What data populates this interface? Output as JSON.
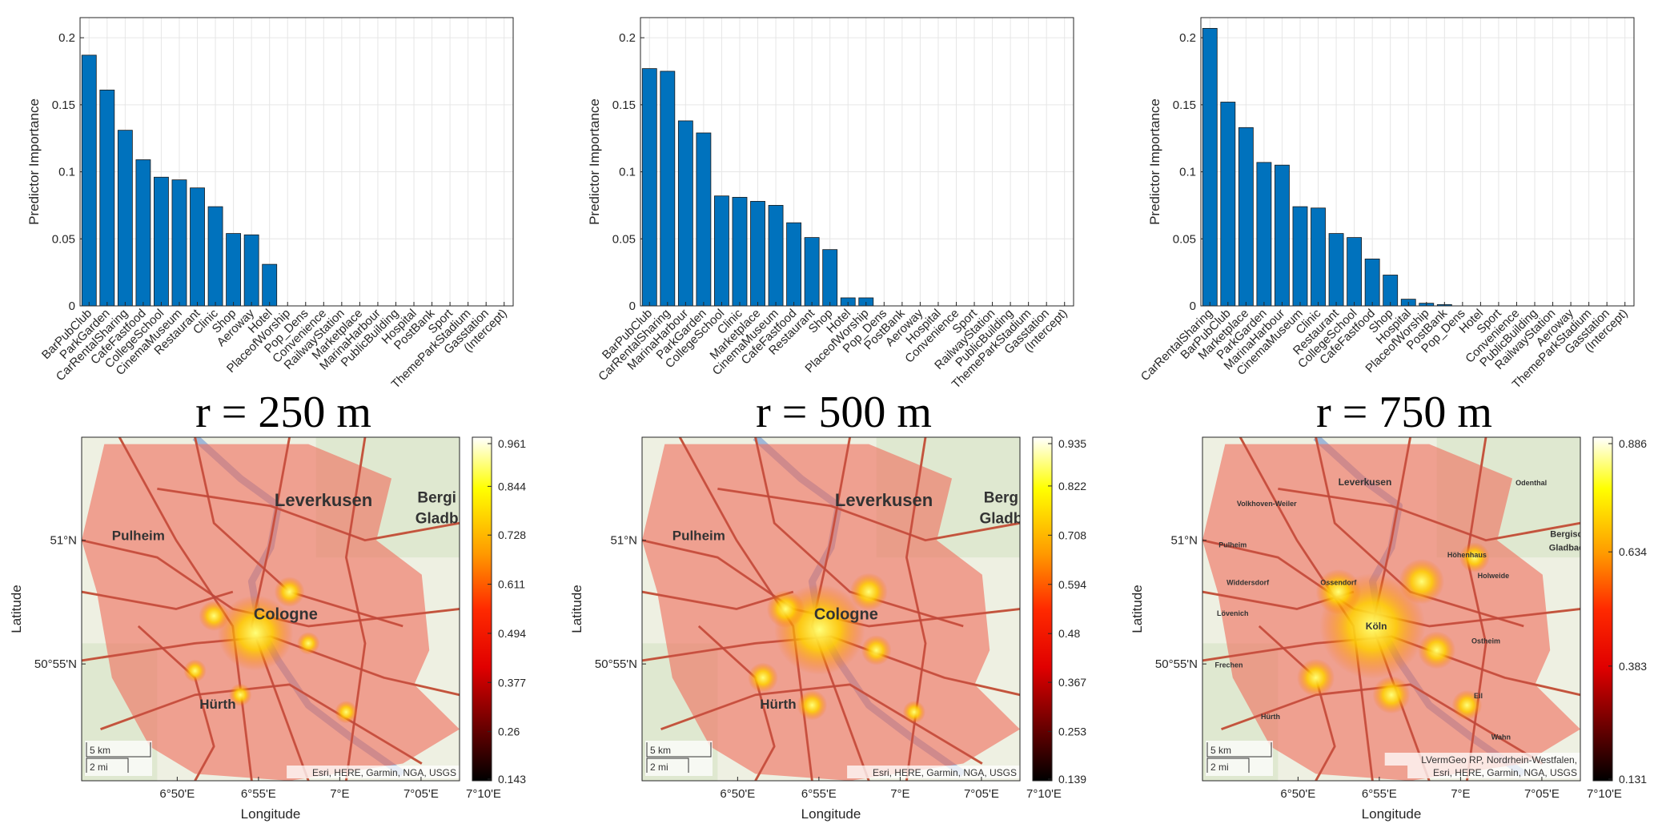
{
  "chart_data": [
    {
      "type": "bar",
      "panel": "r = 250 m",
      "title": "",
      "ylabel": "Predictor Importance",
      "xlabel": "",
      "ylim": [
        0,
        0.215
      ],
      "yticks": [
        "0",
        "0.05",
        "0.1",
        "0.15",
        "0.2"
      ],
      "grid": true,
      "categories": [
        "BarPubClub",
        "ParkGarden",
        "CarRentalSharing",
        "CafeFastfood",
        "CollegeSchool",
        "CinemaMuseum",
        "Restaurant",
        "Clinic",
        "Shop",
        "Aeroway",
        "Hotel",
        "PlaceofWorship",
        "Pop_Dens",
        "Convenience",
        "RailwayStation",
        "Marketplace",
        "MarinaHarbour",
        "PublicBuilding",
        "Hospital",
        "PostBank",
        "Sport",
        "ThemeParkStadium",
        "Gasstation",
        "(Intercept)"
      ],
      "values": [
        0.187,
        0.161,
        0.131,
        0.109,
        0.096,
        0.094,
        0.088,
        0.074,
        0.054,
        0.053,
        0.031,
        0,
        0,
        0,
        0,
        0,
        0,
        0,
        0,
        0,
        0,
        0,
        0,
        0
      ]
    },
    {
      "type": "bar",
      "panel": "r = 500 m",
      "title": "",
      "ylabel": "Predictor Importance",
      "xlabel": "",
      "ylim": [
        0,
        0.215
      ],
      "yticks": [
        "0",
        "0.05",
        "0.1",
        "0.15",
        "0.2"
      ],
      "grid": true,
      "categories": [
        "BarPubClub",
        "CarRentalSharing",
        "MarinaHarbour",
        "ParkGarden",
        "CollegeSchool",
        "Clinic",
        "Marketplace",
        "CinemaMuseum",
        "CafeFastfood",
        "Restaurant",
        "Shop",
        "Hotel",
        "PlaceofWorship",
        "Pop_Dens",
        "PostBank",
        "Aeroway",
        "Hospital",
        "Convenience",
        "Sport",
        "RailwayStation",
        "PublicBuilding",
        "ThemeParkStadium",
        "Gasstation",
        "(Intercept)"
      ],
      "values": [
        0.177,
        0.175,
        0.138,
        0.129,
        0.082,
        0.081,
        0.078,
        0.075,
        0.062,
        0.051,
        0.042,
        0.006,
        0.006,
        0,
        0,
        0,
        0,
        0,
        0,
        0,
        0,
        0,
        0,
        0
      ]
    },
    {
      "type": "bar",
      "panel": "r = 750 m",
      "title": "",
      "ylabel": "Predictor Importance",
      "xlabel": "",
      "ylim": [
        0,
        0.215
      ],
      "yticks": [
        "0",
        "0.05",
        "0.1",
        "0.15",
        "0.2"
      ],
      "grid": true,
      "categories": [
        "CarRentalSharing",
        "BarPubClub",
        "Marketplace",
        "ParkGarden",
        "MarinaHarbour",
        "CinemaMuseum",
        "Clinic",
        "Restaurant",
        "CollegeSchool",
        "CafeFastfood",
        "Shop",
        "Hospital",
        "PlaceofWorship",
        "PostBank",
        "Pop_Dens",
        "Hotel",
        "Sport",
        "Convenience",
        "PublicBuilding",
        "RailwayStation",
        "Aeroway",
        "ThemeParkStadium",
        "Gasstation",
        "(Intercept)"
      ],
      "values": [
        0.207,
        0.152,
        0.133,
        0.107,
        0.105,
        0.074,
        0.073,
        0.054,
        0.051,
        0.035,
        0.023,
        0.005,
        0.002,
        0.001,
        0,
        0,
        0,
        0,
        0,
        0,
        0,
        0,
        0,
        0
      ]
    },
    {
      "type": "heatmap",
      "panel": "r = 250 m",
      "xlabel": "Longitude",
      "ylabel": "Latitude",
      "xticks": [
        "6°50'E",
        "6°55'E",
        "7°E",
        "7°05'E",
        "7°10'E"
      ],
      "yticks": [
        "51°N",
        "50°55'N"
      ],
      "colorbar_ticks": [
        "0.961",
        "0.844",
        "0.728",
        "0.611",
        "0.494",
        "0.377",
        "0.26",
        "0.143"
      ],
      "color_range": [
        0.143,
        0.961
      ],
      "place_labels": [
        "Leverkusen",
        "Pulheim",
        "Cologne",
        "Hürth",
        "Bergi",
        "Gladb"
      ],
      "scale": [
        "5 km",
        "2 mi"
      ],
      "attribution": [
        "Esri, HERE, Garmin, NGA, USGS"
      ]
    },
    {
      "type": "heatmap",
      "panel": "r = 500 m",
      "xlabel": "Longitude",
      "ylabel": "Latitude",
      "xticks": [
        "6°50'E",
        "6°55'E",
        "7°E",
        "7°05'E",
        "7°10'E"
      ],
      "yticks": [
        "51°N",
        "50°55'N"
      ],
      "colorbar_ticks": [
        "0.935",
        "0.822",
        "0.708",
        "0.594",
        "0.48",
        "0.367",
        "0.253",
        "0.139"
      ],
      "color_range": [
        0.139,
        0.935
      ],
      "place_labels": [
        "Leverkusen",
        "Pulheim",
        "Cologne",
        "Hürth",
        "Berg",
        "Gladb"
      ],
      "scale": [
        "5 km",
        "2 mi"
      ],
      "attribution": [
        "Esri, HERE, Garmin, NGA, USGS"
      ]
    },
    {
      "type": "heatmap",
      "panel": "r = 750 m",
      "xlabel": "Longitude",
      "ylabel": "Latitude",
      "xticks": [
        "6°50'E",
        "6°55'E",
        "7°E",
        "7°05'E",
        "7°10'E"
      ],
      "yticks": [
        "51°N",
        "50°55'N"
      ],
      "colorbar_ticks": [
        "0.886",
        "0.634",
        "0.383",
        "0.131"
      ],
      "color_range": [
        0.131,
        0.886
      ],
      "place_labels": [
        "Leverkusen",
        "Odenthal",
        "Volkhoven-Weiler",
        "Pulheim",
        "Widdersdorf",
        "Ossendorf",
        "Höhenhaus",
        "Holweide",
        "Bergisch",
        "Gladbach",
        "Lövenich",
        "Köln",
        "Ostheim",
        "Frechen",
        "Hürth",
        "Eil",
        "Wahn"
      ],
      "scale": [
        "5 km",
        "2 mi"
      ],
      "attribution": [
        "LVermGeo RP, Nordrhein-Westfalen,",
        "Esri, HERE, Garmin, NGA, USGS"
      ]
    }
  ],
  "colors": {
    "bar_fill": "#0072BD",
    "bar_edge": "#1a1a1a",
    "grid": "#e6e6e6",
    "axis": "#262626"
  }
}
